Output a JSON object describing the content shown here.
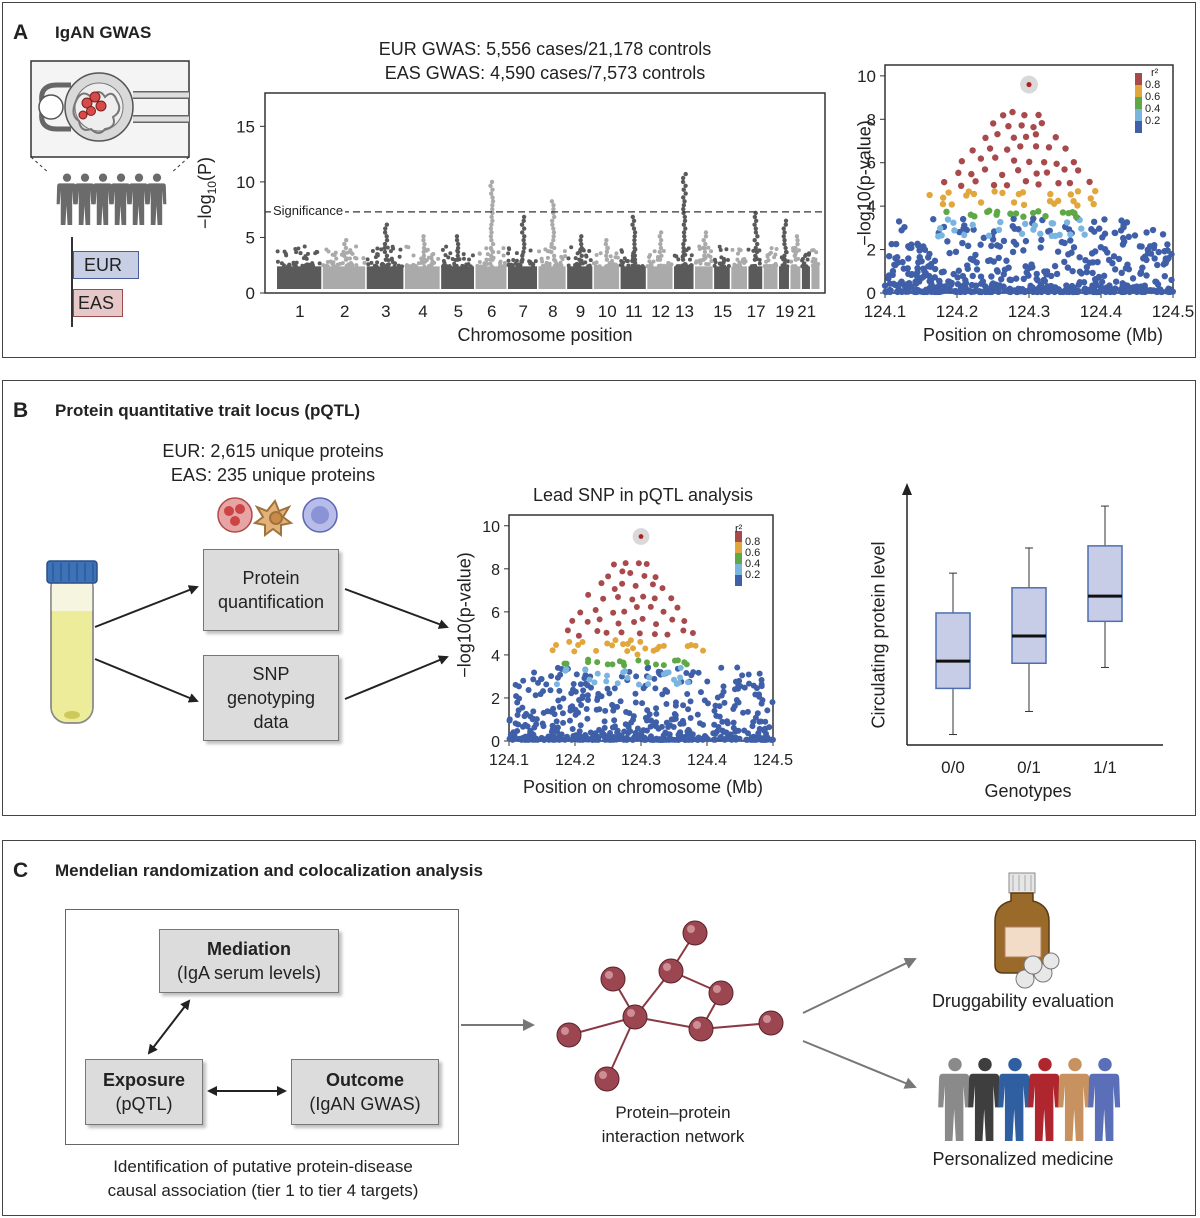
{
  "panel_a": {
    "letter": "A",
    "title": "IgAN GWAS",
    "legend_eur": "EUR",
    "legend_eas": "EAS",
    "gwas_line1": "EUR GWAS: 5,556 cases/21,178 controls",
    "gwas_line2": "EAS GWAS: 4,590 cases/7,573 controls",
    "significance_label": "Significance",
    "manhattan_xlabel": "Chromosome position",
    "manhattan_ylabel": "−log10(P)",
    "locus_xlabel": "Position on chromosome (Mb)",
    "locus_ylabel": "−log10(p-value)",
    "r2_label": "r²"
  },
  "panel_b": {
    "letter": "B",
    "title": "Protein quantitative trait locus (pQTL)",
    "proteins_line1": "EUR: 2,615 unique proteins",
    "proteins_line2": "EAS: 235 unique proteins",
    "box_protein_1": "Protein",
    "box_protein_2": "quantification",
    "box_snp_1": "SNP",
    "box_snp_2": "genotyping",
    "box_snp_3": "data",
    "lead_title": "Lead SNP in pQTL analysis",
    "locus_xlabel": "Position on chromosome (Mb)",
    "locus_ylabel": "−log10(p-value)",
    "r2_label": "r²",
    "box_xlabel": "Genotypes",
    "box_ylabel": "Circulating protein level"
  },
  "panel_c": {
    "letter": "C",
    "title": "Mendelian randomization and colocalization analysis",
    "mediation_1": "Mediation",
    "mediation_2": "(IgA serum levels)",
    "exposure_1": "Exposure",
    "exposure_2": "(pQTL)",
    "outcome_1": "Outcome",
    "outcome_2": "(IgAN GWAS)",
    "identification_1": "Identification of putative protein-disease",
    "identification_2": "causal association (tier 1 to tier 4 targets)",
    "network_1": "Protein–protein",
    "network_2": "interaction network",
    "druggability": "Druggability evaluation",
    "personalized": "Personalized medicine"
  },
  "colors": {
    "r2_08": "#a8494c",
    "r2_06": "#e1a63c",
    "r2_04": "#5ea845",
    "r2_02": "#7ab4e0",
    "r2_00": "#3f5fa8",
    "chrom_dark": "#5a5a5a",
    "chrom_light": "#aaaaaa",
    "eur_fill": "#c8cfe4",
    "eas_fill": "#e6c8c8",
    "box_fill": "#c7cde6",
    "box_stroke": "#4d6fb0",
    "network_node": "#9b4650"
  },
  "chart_data": [
    {
      "type": "scatter",
      "name": "manhattan",
      "x_tick_labels": [
        "1",
        "2",
        "3",
        "4",
        "5",
        "6",
        "7",
        "8",
        "9",
        "10",
        "11",
        "12",
        "13",
        "15",
        "17",
        "19",
        "21"
      ],
      "y_ticks": [
        "0",
        "5",
        "10",
        "15"
      ],
      "ylim": [
        0,
        18
      ],
      "significance_threshold": 7.3,
      "chromosomes": [
        {
          "chr": 1,
          "peak": 4.4
        },
        {
          "chr": 2,
          "peak": 4.8
        },
        {
          "chr": 3,
          "peak": 6.2
        },
        {
          "chr": 4,
          "peak": 5.0
        },
        {
          "chr": 5,
          "peak": 5.2
        },
        {
          "chr": 6,
          "peak": 10.0
        },
        {
          "chr": 7,
          "peak": 7.0
        },
        {
          "chr": 8,
          "peak": 8.2
        },
        {
          "chr": 9,
          "peak": 5.1
        },
        {
          "chr": 10,
          "peak": 4.8
        },
        {
          "chr": 11,
          "peak": 6.7
        },
        {
          "chr": 12,
          "peak": 5.6
        },
        {
          "chr": 13,
          "peak": 10.6
        },
        {
          "chr": 14,
          "peak": 5.3
        },
        {
          "chr": 15,
          "peak": 4.5
        },
        {
          "chr": 16,
          "peak": 4.2
        },
        {
          "chr": 17,
          "peak": 7.2
        },
        {
          "chr": 18,
          "peak": 4.3
        },
        {
          "chr": 19,
          "peak": 6.6
        },
        {
          "chr": 20,
          "peak": 5.1
        },
        {
          "chr": 21,
          "peak": 4.0
        },
        {
          "chr": 22,
          "peak": 3.7
        }
      ]
    },
    {
      "type": "scatter",
      "name": "regional_association_gwas",
      "x_ticks": [
        "124.1",
        "124.2",
        "124.3",
        "124.4",
        "124.5"
      ],
      "y_ticks": [
        "0",
        "2",
        "4",
        "6",
        "8",
        "10"
      ],
      "xlim": [
        124.1,
        124.5
      ],
      "ylim": [
        0,
        10.5
      ],
      "lead_snp": {
        "x": 124.3,
        "y": 9.6
      },
      "r2_legend": [
        "0.8",
        "0.6",
        "0.4",
        "0.2"
      ]
    },
    {
      "type": "scatter",
      "name": "regional_association_pqtl",
      "title": "Lead SNP in pQTL analysis",
      "x_ticks": [
        "124.1",
        "124.2",
        "124.3",
        "124.4",
        "124.5"
      ],
      "y_ticks": [
        "0",
        "2",
        "4",
        "6",
        "8",
        "10"
      ],
      "xlim": [
        124.1,
        124.5
      ],
      "ylim": [
        0,
        10.5
      ],
      "lead_snp": {
        "x": 124.3,
        "y": 9.5
      },
      "r2_legend": [
        "0.8",
        "0.6",
        "0.4",
        "0.2"
      ]
    },
    {
      "type": "box",
      "name": "genotype_boxplot",
      "categories": [
        "0/0",
        "0/1",
        "1/1"
      ],
      "boxes": [
        {
          "min": 0.5,
          "q1": 2.7,
          "median": 4.0,
          "q3": 6.3,
          "max": 8.2
        },
        {
          "min": 1.6,
          "q1": 3.9,
          "median": 5.2,
          "q3": 7.5,
          "max": 9.4
        },
        {
          "min": 3.7,
          "q1": 5.9,
          "median": 7.1,
          "q3": 9.5,
          "max": 11.4
        }
      ],
      "ylim": [
        0,
        12.5
      ]
    }
  ]
}
